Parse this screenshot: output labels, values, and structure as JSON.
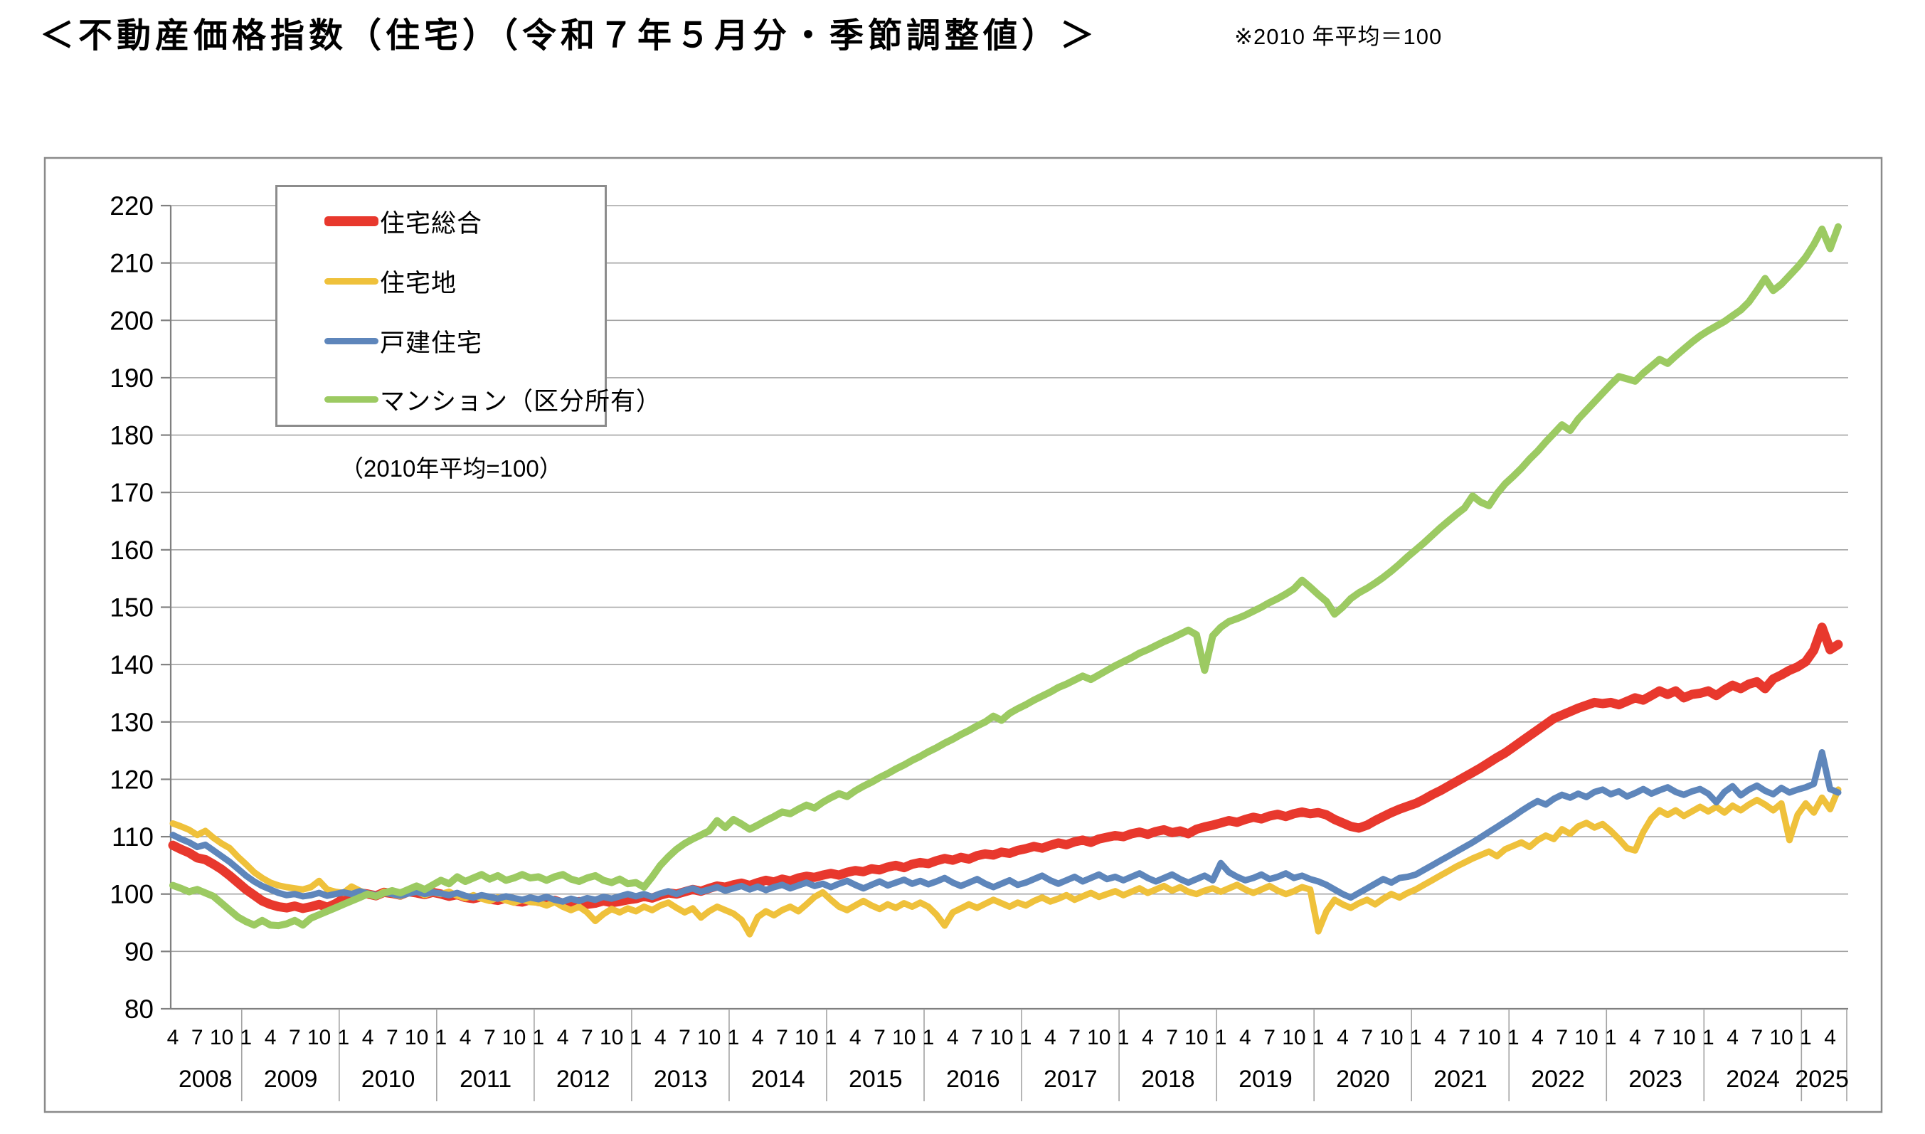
{
  "page": {
    "title": "＜不動産価格指数（住宅）（令和７年５月分・季節調整値）＞",
    "note": "※2010 年平均＝100"
  },
  "legend": {
    "items": [
      {
        "label": "住宅総合",
        "color": "#e8382d",
        "thickness": 14
      },
      {
        "label": "住宅地",
        "color": "#efc13b",
        "thickness": 9
      },
      {
        "label": "戸建住宅",
        "color": "#5e86bb",
        "thickness": 9
      },
      {
        "label": "マンション（区分所有）",
        "color": "#9cca62",
        "thickness": 9
      }
    ]
  },
  "chart_data": {
    "type": "line",
    "title": "不動産価格指数（住宅）",
    "subtitle": "（2010年平均=100）",
    "note": "2010年平均=100",
    "x_start": {
      "year": 2008,
      "month": 4
    },
    "x_end": {
      "year": 2025,
      "month": 5
    },
    "x_frequency": "monthly",
    "x_tick_months": [
      1,
      4,
      7,
      10
    ],
    "years": [
      2008,
      2009,
      2010,
      2011,
      2012,
      2013,
      2014,
      2015,
      2016,
      2017,
      2018,
      2019,
      2020,
      2021,
      2022,
      2023,
      2024,
      2025
    ],
    "ylim": [
      80,
      220
    ],
    "y_step": 10,
    "grid": true,
    "legend_position": "top-left",
    "colors": {
      "grid": "#a3a3a3",
      "axis": "#808080",
      "border": "#8a8a8a"
    },
    "series": [
      {
        "name": "住宅総合",
        "color": "#e8382d",
        "width": 13,
        "values": [
          108.5,
          107.8,
          107.2,
          106.3,
          106.0,
          105.2,
          104.3,
          103.2,
          102.0,
          100.8,
          99.8,
          98.8,
          98.2,
          97.8,
          97.6,
          97.9,
          97.5,
          97.8,
          98.2,
          97.7,
          98.3,
          99.2,
          99.6,
          100.2,
          100.0,
          99.7,
          100.3,
          100.1,
          99.8,
          100.4,
          100.2,
          99.9,
          100.3,
          100.0,
          99.6,
          99.9,
          99.4,
          99.2,
          99.5,
          99.1,
          98.9,
          99.3,
          98.8,
          98.6,
          99.0,
          98.7,
          98.5,
          98.9,
          98.4,
          98.3,
          98.7,
          98.2,
          98.4,
          98.8,
          98.5,
          98.7,
          99.0,
          99.2,
          99.6,
          99.3,
          99.8,
          100.2,
          100.0,
          100.4,
          100.8,
          100.5,
          101.0,
          101.4,
          101.2,
          101.6,
          101.9,
          101.5,
          102.0,
          102.4,
          102.1,
          102.6,
          102.3,
          102.8,
          103.1,
          102.9,
          103.3,
          103.6,
          103.3,
          103.8,
          104.1,
          103.9,
          104.4,
          104.2,
          104.7,
          105.0,
          104.6,
          105.2,
          105.5,
          105.3,
          105.8,
          106.2,
          105.9,
          106.4,
          106.1,
          106.7,
          107.0,
          106.8,
          107.3,
          107.1,
          107.6,
          107.9,
          108.3,
          108.0,
          108.5,
          108.9,
          108.6,
          109.1,
          109.4,
          109.0,
          109.6,
          109.9,
          110.2,
          110.0,
          110.5,
          110.8,
          110.4,
          110.9,
          111.2,
          110.7,
          111.0,
          110.5,
          111.3,
          111.7,
          112.0,
          112.4,
          112.8,
          112.5,
          113.0,
          113.4,
          113.1,
          113.6,
          113.9,
          113.5,
          114.0,
          114.3,
          114.0,
          114.2,
          113.8,
          113.0,
          112.4,
          111.8,
          111.5,
          112.0,
          112.8,
          113.5,
          114.2,
          114.8,
          115.3,
          115.8,
          116.5,
          117.3,
          118.0,
          118.8,
          119.6,
          120.4,
          121.2,
          122.0,
          122.9,
          123.8,
          124.6,
          125.6,
          126.6,
          127.6,
          128.6,
          129.6,
          130.6,
          131.2,
          131.8,
          132.4,
          132.9,
          133.4,
          133.2,
          133.4,
          133.0,
          133.6,
          134.2,
          133.8,
          134.6,
          135.4,
          134.8,
          135.4,
          134.2,
          134.8,
          135.0,
          135.4,
          134.6,
          135.6,
          136.4,
          135.8,
          136.6,
          137.0,
          135.8,
          137.5,
          138.2,
          139.0,
          139.6,
          140.5,
          142.5,
          146.5,
          142.6,
          143.5
        ]
      },
      {
        "name": "住宅地",
        "color": "#efc13b",
        "width": 9,
        "values": [
          112.3,
          111.8,
          111.2,
          110.3,
          111.0,
          109.8,
          108.8,
          108.0,
          106.5,
          105.2,
          103.8,
          102.8,
          102.0,
          101.5,
          101.2,
          101.0,
          100.8,
          101.2,
          102.3,
          100.8,
          100.4,
          100.2,
          101.3,
          100.6,
          100.0,
          99.7,
          100.4,
          100.0,
          99.6,
          100.2,
          100.5,
          99.8,
          100.3,
          100.0,
          100.4,
          99.7,
          99.3,
          99.8,
          99.2,
          98.8,
          99.4,
          98.9,
          98.5,
          99.0,
          98.6,
          98.5,
          98.0,
          98.6,
          97.8,
          97.2,
          97.8,
          96.8,
          95.3,
          96.5,
          97.4,
          96.8,
          97.5,
          97.0,
          97.8,
          97.2,
          98.0,
          98.5,
          97.6,
          96.8,
          97.5,
          95.9,
          97.0,
          97.8,
          97.2,
          96.6,
          95.5,
          93.0,
          96.0,
          97.0,
          96.3,
          97.2,
          97.8,
          97.0,
          98.2,
          99.5,
          100.3,
          99.0,
          97.8,
          97.2,
          98.0,
          98.8,
          98.0,
          97.4,
          98.2,
          97.6,
          98.4,
          97.8,
          98.5,
          97.8,
          96.4,
          94.5,
          96.8,
          97.5,
          98.2,
          97.6,
          98.3,
          99.0,
          98.4,
          97.8,
          98.5,
          98.0,
          98.8,
          99.4,
          98.7,
          99.2,
          99.8,
          99.0,
          99.6,
          100.2,
          99.5,
          100.0,
          100.5,
          99.8,
          100.4,
          101.0,
          100.2,
          100.8,
          101.4,
          100.6,
          101.2,
          100.4,
          100.0,
          100.6,
          101.0,
          100.4,
          101.0,
          101.6,
          100.8,
          100.2,
          100.8,
          101.4,
          100.6,
          100.0,
          100.5,
          101.2,
          100.8,
          93.5,
          97.0,
          99.0,
          98.2,
          97.6,
          98.4,
          99.0,
          98.2,
          99.2,
          100.0,
          99.4,
          100.2,
          100.8,
          101.6,
          102.4,
          103.2,
          104.0,
          104.8,
          105.5,
          106.2,
          106.8,
          107.4,
          106.6,
          107.8,
          108.4,
          109.0,
          108.2,
          109.4,
          110.2,
          109.6,
          111.3,
          110.5,
          111.8,
          112.4,
          111.6,
          112.2,
          111.0,
          109.6,
          108.0,
          107.6,
          110.8,
          113.2,
          114.6,
          113.8,
          114.6,
          113.6,
          114.4,
          115.2,
          114.4,
          115.2,
          114.2,
          115.4,
          114.6,
          115.6,
          116.4,
          115.6,
          114.6,
          115.8,
          109.4,
          113.8,
          115.8,
          114.2,
          116.8,
          114.8,
          118.2
        ]
      },
      {
        "name": "戸建住宅",
        "color": "#5e86bb",
        "width": 9,
        "values": [
          110.3,
          109.6,
          109.0,
          108.2,
          108.6,
          107.6,
          106.6,
          105.6,
          104.4,
          103.2,
          102.2,
          101.4,
          100.8,
          100.2,
          99.8,
          100.0,
          99.6,
          99.8,
          100.2,
          99.7,
          100.0,
          100.3,
          100.0,
          100.5,
          100.1,
          99.8,
          100.2,
          100.0,
          99.7,
          100.1,
          100.4,
          100.0,
          100.3,
          100.1,
          99.8,
          100.2,
          99.7,
          99.4,
          99.8,
          99.5,
          99.2,
          99.6,
          99.3,
          99.0,
          99.4,
          99.1,
          99.5,
          99.0,
          98.7,
          99.2,
          98.8,
          99.3,
          99.0,
          99.5,
          99.2,
          99.6,
          100.0,
          99.6,
          100.0,
          99.5,
          100.1,
          100.5,
          100.0,
          100.6,
          101.0,
          100.4,
          100.8,
          101.2,
          100.6,
          101.0,
          101.4,
          100.8,
          101.3,
          100.7,
          101.2,
          101.6,
          101.0,
          101.5,
          102.0,
          101.4,
          101.8,
          101.2,
          101.8,
          102.3,
          101.6,
          101.0,
          101.6,
          102.2,
          101.5,
          102.0,
          102.5,
          101.8,
          102.3,
          101.7,
          102.2,
          102.8,
          102.0,
          101.4,
          102.0,
          102.6,
          101.8,
          101.2,
          101.8,
          102.4,
          101.6,
          102.0,
          102.6,
          103.2,
          102.4,
          101.8,
          102.4,
          103.0,
          102.2,
          102.8,
          103.4,
          102.6,
          103.0,
          102.4,
          103.0,
          103.6,
          102.8,
          102.2,
          102.8,
          103.4,
          102.6,
          102.0,
          102.6,
          103.2,
          102.4,
          105.4,
          103.8,
          103.0,
          102.4,
          102.8,
          103.4,
          102.6,
          103.0,
          103.6,
          102.8,
          103.2,
          102.6,
          102.2,
          101.6,
          100.8,
          100.0,
          99.4,
          100.2,
          101.0,
          101.8,
          102.6,
          102.0,
          102.8,
          103.0,
          103.4,
          104.2,
          105.0,
          105.8,
          106.6,
          107.4,
          108.2,
          109.0,
          109.9,
          110.8,
          111.7,
          112.6,
          113.5,
          114.5,
          115.4,
          116.2,
          115.6,
          116.6,
          117.3,
          116.8,
          117.5,
          116.9,
          117.8,
          118.2,
          117.4,
          117.9,
          117.0,
          117.6,
          118.3,
          117.5,
          118.1,
          118.6,
          117.8,
          117.3,
          117.9,
          118.3,
          117.5,
          116.0,
          117.8,
          118.8,
          117.2,
          118.2,
          118.9,
          118.0,
          117.4,
          118.5,
          117.7,
          118.2,
          118.6,
          119.2,
          124.7,
          118.3,
          117.7
        ]
      },
      {
        "name": "マンション（区分所有）",
        "color": "#9cca62",
        "width": 10,
        "values": [
          101.5,
          101.0,
          100.4,
          100.8,
          100.2,
          99.6,
          98.4,
          97.2,
          96.0,
          95.2,
          94.6,
          95.4,
          94.6,
          94.5,
          94.8,
          95.4,
          94.6,
          95.8,
          96.4,
          97.0,
          97.6,
          98.2,
          98.8,
          99.4,
          100.0,
          99.6,
          100.2,
          100.6,
          100.2,
          100.8,
          101.4,
          100.8,
          101.6,
          102.4,
          101.8,
          103.0,
          102.2,
          102.8,
          103.4,
          102.6,
          103.2,
          102.4,
          102.8,
          103.4,
          102.8,
          103.0,
          102.4,
          103.0,
          103.4,
          102.6,
          102.2,
          102.8,
          103.2,
          102.4,
          102.0,
          102.6,
          101.8,
          102.0,
          101.2,
          103.0,
          105.0,
          106.5,
          107.8,
          108.8,
          109.6,
          110.3,
          111.0,
          112.8,
          111.6,
          113.0,
          112.2,
          111.3,
          112.0,
          112.8,
          113.5,
          114.3,
          114.0,
          114.8,
          115.5,
          115.0,
          116.0,
          116.8,
          117.5,
          117.0,
          118.0,
          118.8,
          119.5,
          120.3,
          121.0,
          121.8,
          122.5,
          123.3,
          124.0,
          124.8,
          125.5,
          126.3,
          127.0,
          127.8,
          128.5,
          129.3,
          130.0,
          131.0,
          130.3,
          131.5,
          132.3,
          133.0,
          133.8,
          134.5,
          135.2,
          136.0,
          136.6,
          137.3,
          138.0,
          137.4,
          138.2,
          139.0,
          139.8,
          140.5,
          141.2,
          142.0,
          142.6,
          143.3,
          144.0,
          144.6,
          145.3,
          146.0,
          145.2,
          139.0,
          145.0,
          146.5,
          147.5,
          148.0,
          148.6,
          149.3,
          150.0,
          150.8,
          151.5,
          152.3,
          153.2,
          154.7,
          153.5,
          152.2,
          151.0,
          148.8,
          150.0,
          151.5,
          152.5,
          153.3,
          154.2,
          155.2,
          156.3,
          157.5,
          158.8,
          160.0,
          161.2,
          162.5,
          163.8,
          165.0,
          166.2,
          167.3,
          169.4,
          168.3,
          167.7,
          169.8,
          171.5,
          172.8,
          174.2,
          175.8,
          177.2,
          178.8,
          180.3,
          181.8,
          180.8,
          182.8,
          184.3,
          185.8,
          187.3,
          188.8,
          190.2,
          189.8,
          189.4,
          190.8,
          192.0,
          193.2,
          192.5,
          193.8,
          195.0,
          196.2,
          197.3,
          198.2,
          199.0,
          199.8,
          200.8,
          201.8,
          203.2,
          205.2,
          207.3,
          205.2,
          206.3,
          207.8,
          209.3,
          211.0,
          213.2,
          215.9,
          212.5,
          216.3
        ]
      }
    ]
  }
}
